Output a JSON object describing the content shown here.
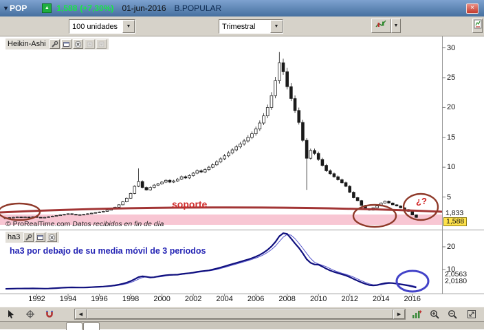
{
  "titlebar": {
    "symbol": "POP",
    "price": "1,588",
    "change": "(+7,30%)",
    "date": "01-jun-2016",
    "instrument": "B.POPULAR"
  },
  "toolbar": {
    "units": "100 unidades",
    "timeframe": "Trimestral"
  },
  "main_chart": {
    "indicator": "Heikin-Ashi",
    "y_ticks": [
      30,
      25,
      20,
      15,
      10,
      5
    ],
    "price_tags": {
      "upper": "1,833",
      "current": "1,588"
    },
    "soporte": "soporte",
    "question": "¿?",
    "copyright": "© ProRealTime.com",
    "copyright_note": "Datos recibidos en fin de día"
  },
  "lower_panel": {
    "indicator": "ha3",
    "y_ticks": [
      20,
      10
    ],
    "value_tags": {
      "upper": "2,0563",
      "current": "2,0180"
    },
    "note": "ha3 por debajo de su media móvil de 3 periodos"
  },
  "x_axis": {
    "years": [
      1992,
      1994,
      1996,
      1998,
      2000,
      2002,
      2004,
      2006,
      2008,
      2010,
      2012,
      2014,
      2016
    ]
  },
  "colors": {
    "up": "#ffffff",
    "down": "#1a1a1a",
    "support": "#a23535",
    "band": "#f5a8bc",
    "circle": "#8f3a2a",
    "blue_circle": "#4343c8",
    "ha3": "#10107e",
    "ha3_signal": "#5555cc",
    "price_highlight": "#ffe24a"
  },
  "chart_data": [
    {
      "type": "candlestick",
      "style": "heikin-ashi",
      "symbol": "POP",
      "timeframe": "Trimestral",
      "start": "1990-Q1",
      "interval": "quarterly",
      "ylim": [
        0,
        32
      ],
      "last_price": 1.588,
      "upper_tag_value": 1.833,
      "closes": [
        1.5,
        1.55,
        1.6,
        1.65,
        1.6,
        1.65,
        1.62,
        1.7,
        1.6,
        1.55,
        1.6,
        1.7,
        1.8,
        1.9,
        2.0,
        2.1,
        2.2,
        2.1,
        2.0,
        2.05,
        2.1,
        2.2,
        2.3,
        2.4,
        2.5,
        2.6,
        2.8,
        3.0,
        3.3,
        3.7,
        4.2,
        4.8,
        5.6,
        6.8,
        7.6,
        6.6,
        6.2,
        6.6,
        7.0,
        7.2,
        7.5,
        7.8,
        7.5,
        7.7,
        8.0,
        8.4,
        8.2,
        8.6,
        9.0,
        9.4,
        9.2,
        9.6,
        10.0,
        10.4,
        10.9,
        11.4,
        11.9,
        12.4,
        12.9,
        13.4,
        13.9,
        14.4,
        15.0,
        15.6,
        16.4,
        17.4,
        18.6,
        20.0,
        22.0,
        24.5,
        27.5,
        26.0,
        23.5,
        21.5,
        19.5,
        17.5,
        14.5,
        11.5,
        12.8,
        12.3,
        11.3,
        10.3,
        9.4,
        8.9,
        8.4,
        7.9,
        7.4,
        6.8,
        5.8,
        4.9,
        4.4,
        3.6,
        3.0,
        2.8,
        3.2,
        3.5,
        4.0,
        4.3,
        4.0,
        3.7,
        3.5,
        3.2,
        2.9,
        2.6,
        2.0,
        1.588
      ],
      "special_highs": {
        "34": 9.8,
        "70": 29.3
      },
      "special_lows": {
        "77": 6.2
      },
      "annotations": {
        "support_line": "soporte",
        "highlight_circles": [
          "1990-1991 lows",
          "2013-2014 support test",
          "2016 breakdown ¿?"
        ]
      }
    },
    {
      "type": "line",
      "name": "ha3",
      "derivation": "ha3 = 3-period average of closes (thick); signal = 3-period MA of ha3 (thin)",
      "last_value": 2.018,
      "ylim": [
        0,
        28
      ],
      "annotation": "ha3 por debajo de su media móvil de 3 periodos"
    }
  ]
}
